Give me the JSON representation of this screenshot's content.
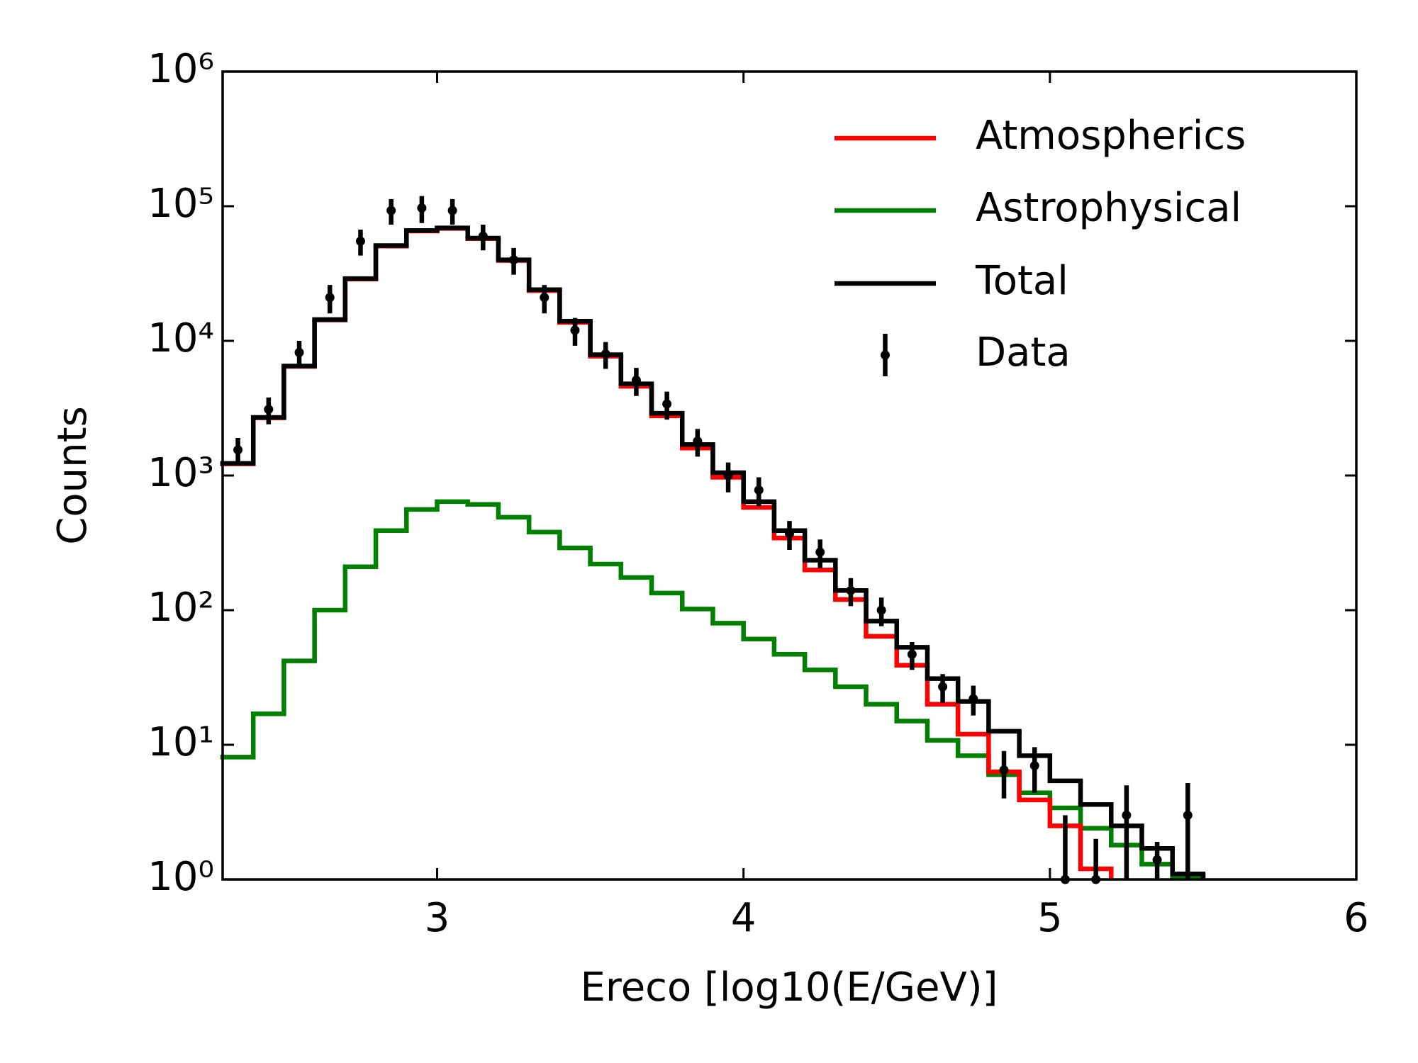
{
  "chart_data": {
    "type": "histogram",
    "xlabel": "Ereco [log10(E/GeV)]",
    "ylabel": "Counts",
    "xlim": [
      2.3,
      6
    ],
    "ylim": [
      1,
      1000000
    ],
    "y_log_scale": true,
    "xticks": [
      3,
      4,
      5,
      6
    ],
    "yticks": [
      {
        "value": 1,
        "label": "10⁰"
      },
      {
        "value": 10,
        "label": "10¹"
      },
      {
        "value": 100,
        "label": "10²"
      },
      {
        "value": 1000,
        "label": "10³"
      },
      {
        "value": 10000,
        "label": "10⁴"
      },
      {
        "value": 100000,
        "label": "10⁵"
      },
      {
        "value": 1000000,
        "label": "10⁶"
      }
    ],
    "legend_position": "upper right",
    "bins": [
      2.3,
      2.4,
      2.5,
      2.6,
      2.7,
      2.8,
      2.9,
      3.0,
      3.1,
      3.2,
      3.3,
      3.4,
      3.5,
      3.6,
      3.7,
      3.8,
      3.9,
      4.0,
      4.1,
      4.2,
      4.3,
      4.4,
      4.5,
      4.6,
      4.7,
      4.8,
      4.9,
      5.0,
      5.1,
      5.2,
      5.3,
      5.4,
      5.5
    ],
    "series": [
      {
        "name": "Atmospherics",
        "color": "#ff0000",
        "values": [
          1220,
          2680,
          6460,
          14300,
          28800,
          50600,
          65400,
          68400,
          57400,
          39500,
          23600,
          13700,
          7700,
          4600,
          2770,
          1600,
          970,
          580,
          343,
          199,
          120,
          64,
          39,
          20,
          12,
          6.3,
          3.9,
          2.5,
          1.2,
          null,
          null,
          null
        ]
      },
      {
        "name": "Astrophysical",
        "color": "#008000",
        "values": [
          8.1,
          17,
          42,
          100,
          210,
          390,
          560,
          640,
          610,
          490,
          380,
          290,
          220,
          175,
          134,
          102,
          80,
          61,
          47,
          36,
          27,
          20,
          15,
          10.8,
          8.3,
          6.0,
          4.4,
          3.4,
          2.4,
          1.8,
          1.3,
          1.05
        ]
      },
      {
        "name": "Total",
        "color": "#000000",
        "values": [
          1230,
          2700,
          6500,
          14400,
          29000,
          51000,
          66000,
          69000,
          58000,
          40000,
          24000,
          14000,
          7900,
          4800,
          2900,
          1700,
          1050,
          640,
          390,
          235,
          140,
          83,
          53,
          31,
          21,
          12.6,
          8.3,
          5.4,
          3.6,
          2.5,
          1.7,
          1.1
        ]
      },
      {
        "name": "Data",
        "color": "#000000",
        "x": [
          2.35,
          2.45,
          2.55,
          2.65,
          2.75,
          2.85,
          2.95,
          3.05,
          3.15,
          3.25,
          3.35,
          3.45,
          3.55,
          3.65,
          3.75,
          3.85,
          3.95,
          4.05,
          4.15,
          4.25,
          4.35,
          4.45,
          4.55,
          4.65,
          4.75,
          4.85,
          4.95,
          5.05,
          5.15,
          5.25,
          5.35,
          5.45
        ],
        "values": [
          1550,
          3100,
          8200,
          21000,
          55000,
          93000,
          97000,
          93000,
          60000,
          40000,
          21000,
          12000,
          8000,
          5100,
          3400,
          1800,
          1000,
          780,
          370,
          270,
          140,
          100,
          47,
          27,
          22,
          6.5,
          7,
          1,
          1,
          3,
          1.4,
          3
        ],
        "errors": [
          350,
          700,
          1800,
          5000,
          12000,
          20000,
          22000,
          20000,
          13000,
          9000,
          5000,
          2800,
          1800,
          1200,
          800,
          420,
          250,
          190,
          90,
          65,
          33,
          24,
          11,
          6.5,
          5.5,
          2.5,
          2.6,
          2,
          1,
          2,
          0.5,
          2.2
        ]
      }
    ]
  }
}
